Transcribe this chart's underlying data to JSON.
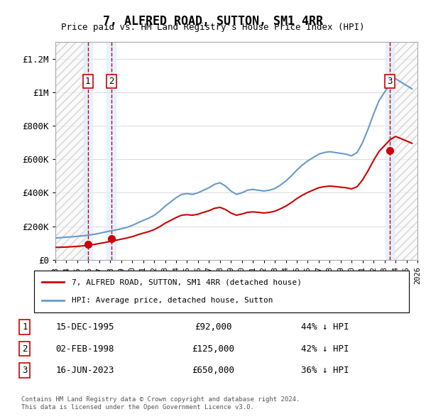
{
  "title": "7, ALFRED ROAD, SUTTON, SM1 4RR",
  "subtitle": "Price paid vs. HM Land Registry's House Price Index (HPI)",
  "legend_line1": "7, ALFRED ROAD, SUTTON, SM1 4RR (detached house)",
  "legend_line2": "HPI: Average price, detached house, Sutton",
  "footer1": "Contains HM Land Registry data © Crown copyright and database right 2024.",
  "footer2": "This data is licensed under the Open Government Licence v3.0.",
  "sale_color": "#cc0000",
  "hpi_color": "#6699cc",
  "ylim": [
    0,
    1300000
  ],
  "yticks": [
    0,
    200000,
    400000,
    600000,
    800000,
    1000000,
    1200000
  ],
  "ytick_labels": [
    "£0",
    "£200K",
    "£400K",
    "£600K",
    "£800K",
    "£1M",
    "£1.2M"
  ],
  "transactions": [
    {
      "num": 1,
      "date": "15-DEC-1995",
      "price": 92000,
      "pct": "44%",
      "year_x": 1995.96
    },
    {
      "num": 2,
      "date": "02-FEB-1998",
      "price": 125000,
      "pct": "42%",
      "year_x": 1998.09
    },
    {
      "num": 3,
      "date": "16-JUN-2023",
      "price": 650000,
      "pct": "36%",
      "year_x": 2023.46
    }
  ],
  "table_rows": [
    {
      "num": 1,
      "date": "15-DEC-1995",
      "price": "£92,000",
      "pct": "44% ↓ HPI"
    },
    {
      "num": 2,
      "date": "02-FEB-1998",
      "price": "£125,000",
      "pct": "42% ↓ HPI"
    },
    {
      "num": 3,
      "date": "16-JUN-2023",
      "price": "£650,000",
      "pct": "36% ↓ HPI"
    }
  ],
  "hpi_years": [
    1993,
    1993.5,
    1994,
    1994.5,
    1995,
    1995.5,
    1996,
    1996.5,
    1997,
    1997.5,
    1998,
    1998.5,
    1999,
    1999.5,
    2000,
    2000.5,
    2001,
    2001.5,
    2002,
    2002.5,
    2003,
    2003.5,
    2004,
    2004.5,
    2005,
    2005.5,
    2006,
    2006.5,
    2007,
    2007.5,
    2008,
    2008.5,
    2009,
    2009.5,
    2010,
    2010.5,
    2011,
    2011.5,
    2012,
    2012.5,
    2013,
    2013.5,
    2014,
    2014.5,
    2015,
    2015.5,
    2016,
    2016.5,
    2017,
    2017.5,
    2018,
    2018.5,
    2019,
    2019.5,
    2020,
    2020.5,
    2021,
    2021.5,
    2022,
    2022.5,
    2023,
    2023.5,
    2024,
    2024.5,
    2025,
    2025.5
  ],
  "hpi_values": [
    130000,
    132000,
    135000,
    137000,
    140000,
    143000,
    147000,
    152000,
    158000,
    165000,
    172000,
    178000,
    185000,
    193000,
    205000,
    220000,
    235000,
    248000,
    265000,
    290000,
    320000,
    345000,
    370000,
    390000,
    395000,
    390000,
    400000,
    415000,
    430000,
    450000,
    460000,
    440000,
    410000,
    390000,
    400000,
    415000,
    420000,
    415000,
    410000,
    415000,
    425000,
    445000,
    470000,
    500000,
    535000,
    565000,
    590000,
    610000,
    630000,
    640000,
    645000,
    640000,
    635000,
    630000,
    620000,
    640000,
    700000,
    780000,
    870000,
    950000,
    1000000,
    1050000,
    1080000,
    1060000,
    1040000,
    1020000
  ],
  "sale_years": [
    1993,
    1993.5,
    1994,
    1994.5,
    1995,
    1995.5,
    1996,
    1996.5,
    1997,
    1997.5,
    1998,
    1998.5,
    1999,
    1999.5,
    2000,
    2000.5,
    2001,
    2001.5,
    2002,
    2002.5,
    2003,
    2003.5,
    2004,
    2004.5,
    2005,
    2005.5,
    2006,
    2006.5,
    2007,
    2007.5,
    2008,
    2008.5,
    2009,
    2009.5,
    2010,
    2010.5,
    2011,
    2011.5,
    2012,
    2012.5,
    2013,
    2013.5,
    2014,
    2014.5,
    2015,
    2015.5,
    2016,
    2016.5,
    2017,
    2017.5,
    2018,
    2018.5,
    2019,
    2019.5,
    2020,
    2020.5,
    2021,
    2021.5,
    2022,
    2022.5,
    2023,
    2023.5,
    2024,
    2024.5,
    2025,
    2025.5
  ],
  "sale_values": [
    74000,
    75000,
    76000,
    78000,
    80000,
    83000,
    87000,
    91000,
    97000,
    103000,
    110000,
    116000,
    123000,
    130000,
    138000,
    149000,
    159000,
    168000,
    180000,
    197000,
    218000,
    235000,
    252000,
    266000,
    269000,
    266000,
    272000,
    283000,
    293000,
    307000,
    313000,
    300000,
    279000,
    266000,
    273000,
    283000,
    286000,
    283000,
    279000,
    283000,
    290000,
    304000,
    320000,
    341000,
    365000,
    385000,
    402000,
    416000,
    430000,
    436000,
    440000,
    437000,
    433000,
    430000,
    423000,
    436000,
    477000,
    532000,
    593000,
    647000,
    682000,
    716000,
    736000,
    723000,
    709000,
    695000
  ],
  "xmin": 1993,
  "xmax": 2026,
  "xticks": [
    1993,
    1994,
    1995,
    1996,
    1997,
    1998,
    1999,
    2000,
    2001,
    2002,
    2003,
    2004,
    2005,
    2006,
    2007,
    2008,
    2009,
    2010,
    2011,
    2012,
    2013,
    2014,
    2015,
    2016,
    2017,
    2018,
    2019,
    2020,
    2021,
    2022,
    2023,
    2024,
    2025,
    2026
  ]
}
